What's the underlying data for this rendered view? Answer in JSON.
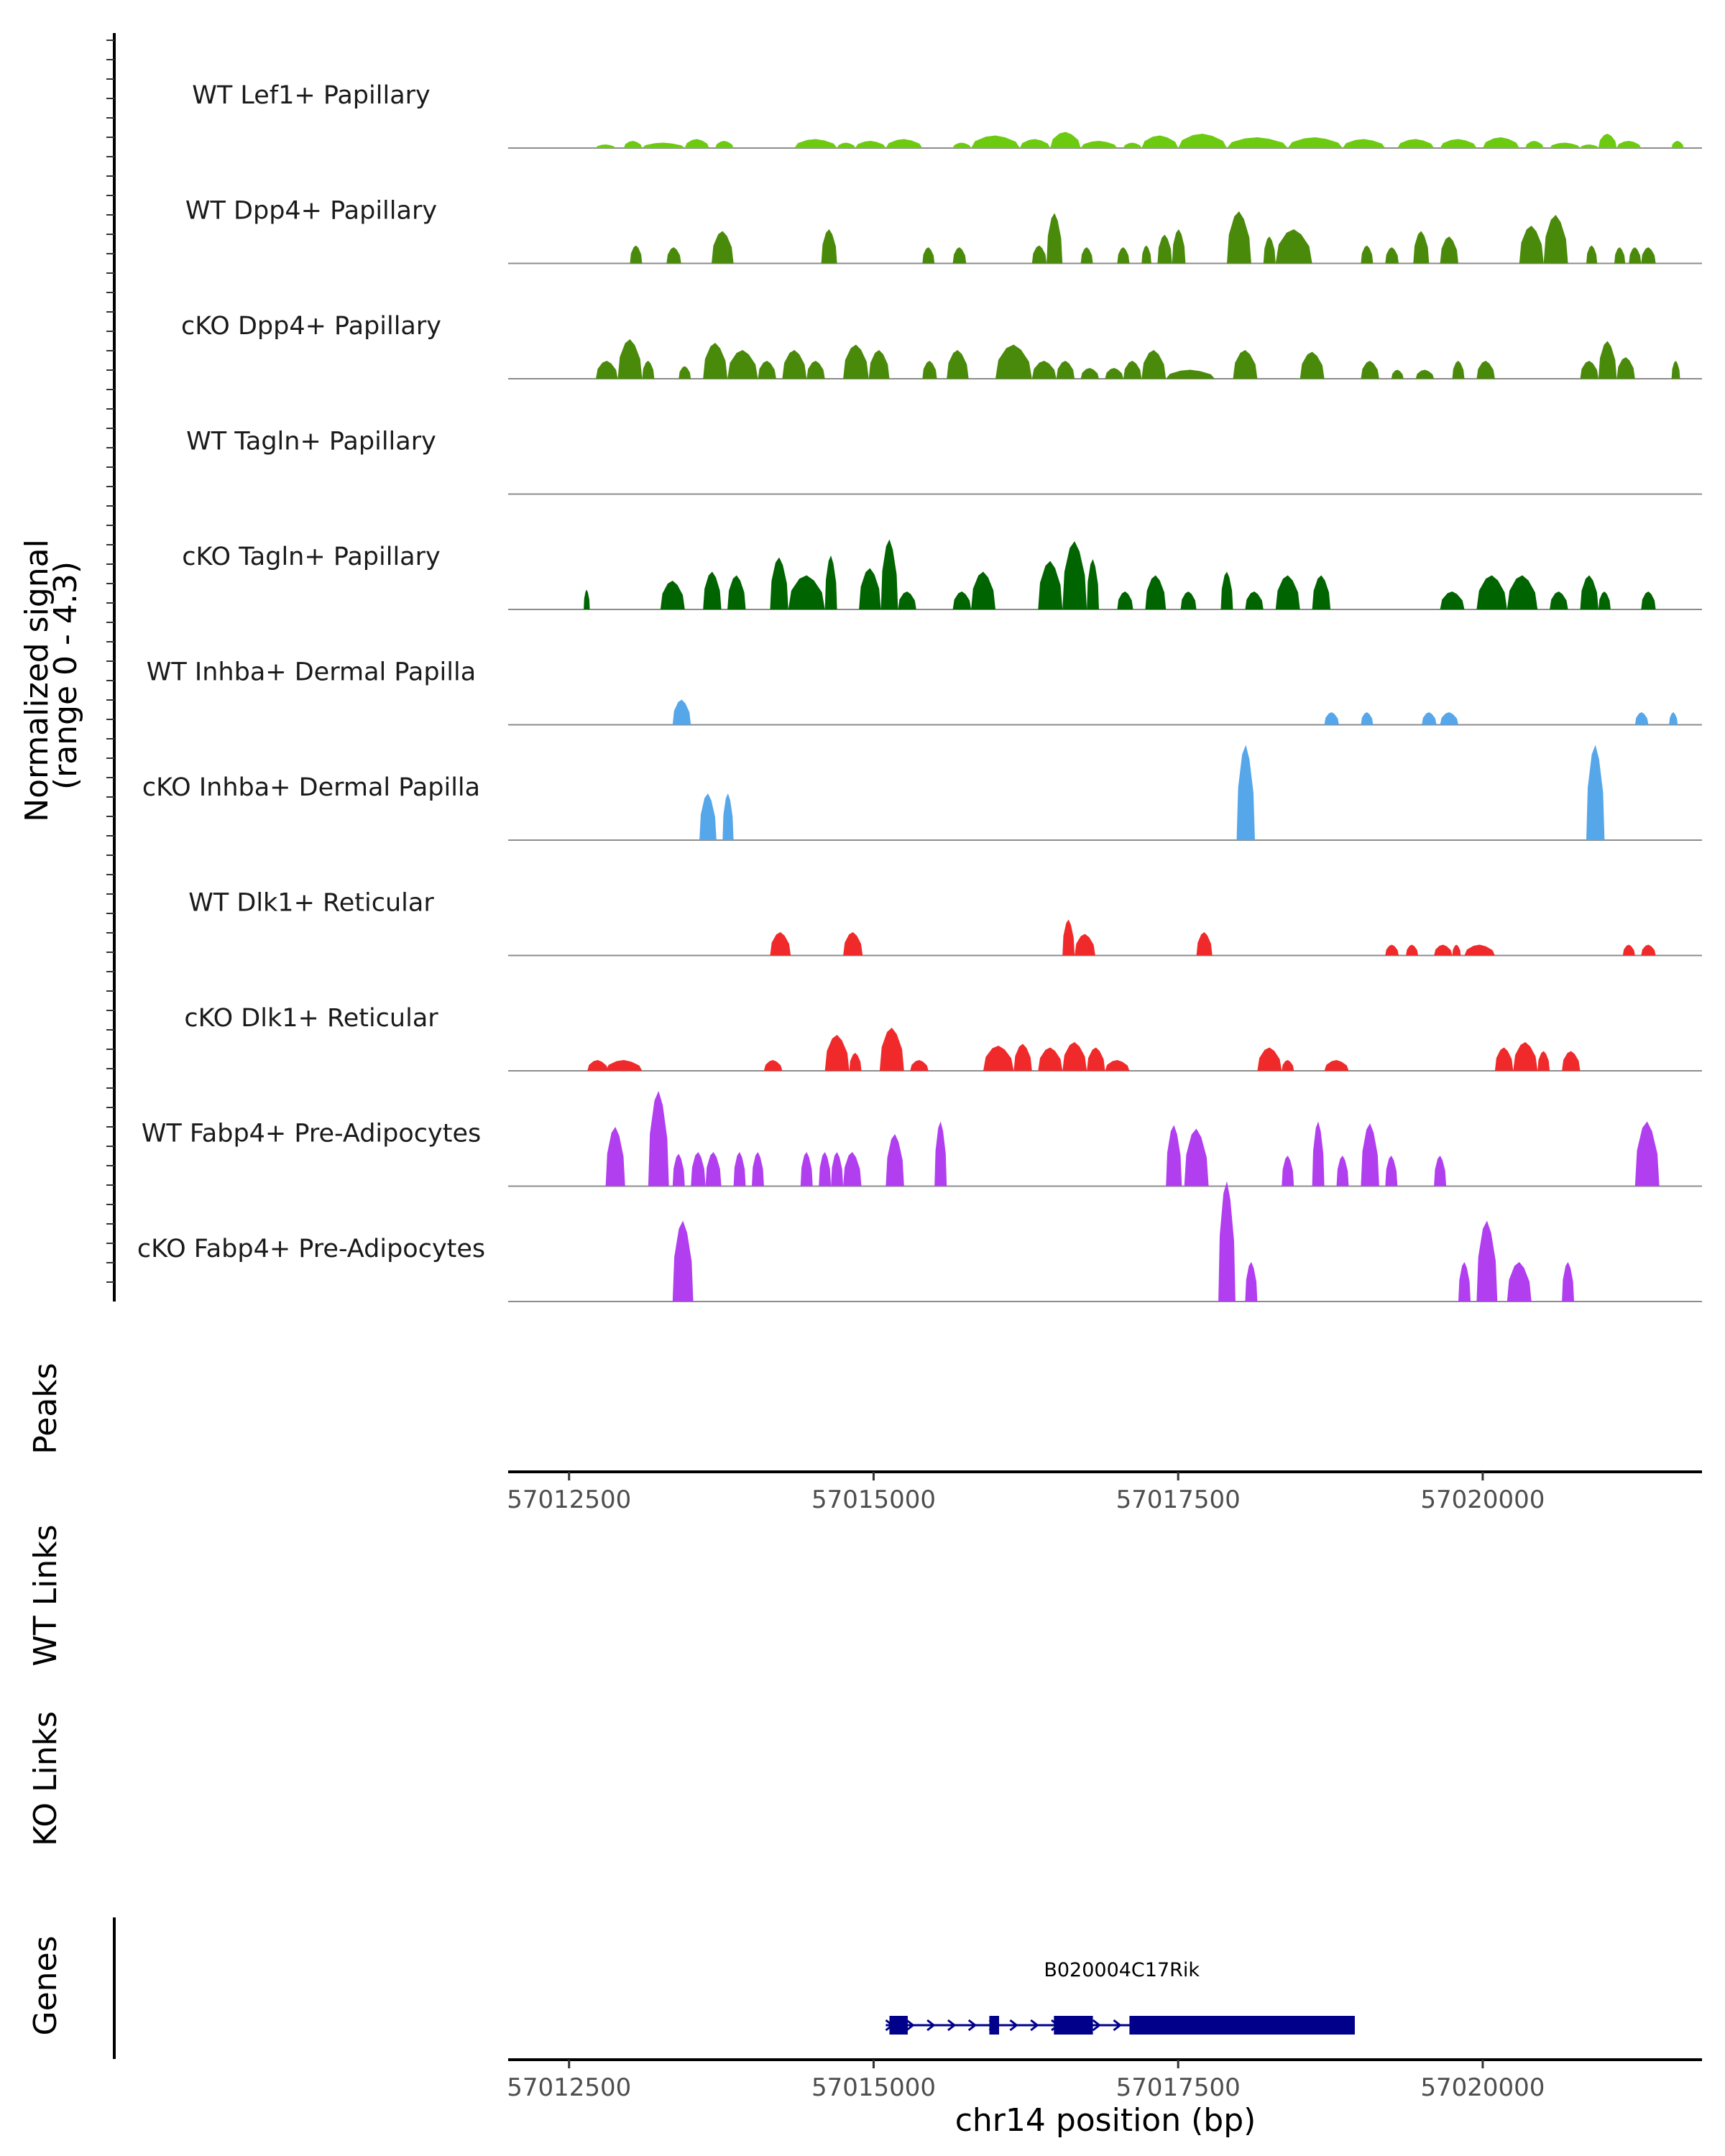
{
  "chart_data": {
    "type": "area",
    "title": "",
    "region": {
      "chrom": "chr14",
      "start": 57012000,
      "end": 57021800
    },
    "coverage_ylabel": "Normalized signal\n(range 0 - 4.3)",
    "ylim": [
      0,
      4.3
    ],
    "tracks": [
      {
        "name": "WT Lef1+ Papillary",
        "color": "#6ccb10",
        "peaks": [
          [
            57012720,
            57012880,
            0.2
          ],
          [
            57012950,
            57013100,
            0.4
          ],
          [
            57013100,
            57013450,
            0.3
          ],
          [
            57013450,
            57013650,
            0.5
          ],
          [
            57013700,
            57013850,
            0.4
          ],
          [
            57014350,
            57014700,
            0.5
          ],
          [
            57014700,
            57014850,
            0.3
          ],
          [
            57014850,
            57015100,
            0.4
          ],
          [
            57015100,
            57015400,
            0.5
          ],
          [
            57015650,
            57015800,
            0.3
          ],
          [
            57015800,
            57016200,
            0.7
          ],
          [
            57016200,
            57016450,
            0.5
          ],
          [
            57016450,
            57016700,
            0.9
          ],
          [
            57016700,
            57017000,
            0.4
          ],
          [
            57017050,
            57017200,
            0.3
          ],
          [
            57017200,
            57017500,
            0.7
          ],
          [
            57017500,
            57017900,
            0.8
          ],
          [
            57017900,
            57018400,
            0.6
          ],
          [
            57018400,
            57018850,
            0.6
          ],
          [
            57018850,
            57019200,
            0.5
          ],
          [
            57019300,
            57019600,
            0.5
          ],
          [
            57019650,
            57019950,
            0.5
          ],
          [
            57020000,
            57020300,
            0.6
          ],
          [
            57020350,
            57020500,
            0.4
          ],
          [
            57020550,
            57020800,
            0.3
          ],
          [
            57020800,
            57020950,
            0.2
          ],
          [
            57020950,
            57021100,
            0.8
          ],
          [
            57021100,
            57021300,
            0.4
          ],
          [
            57021550,
            57021650,
            0.4
          ]
        ]
      },
      {
        "name": "WT Dpp4+ Papillary",
        "color": "#4a8a0b",
        "peaks": [
          [
            57013000,
            57013100,
            1.0
          ],
          [
            57013300,
            57013420,
            0.9
          ],
          [
            57013670,
            57013850,
            1.8
          ],
          [
            57014570,
            57014700,
            1.9
          ],
          [
            57015400,
            57015500,
            0.9
          ],
          [
            57015650,
            57015760,
            0.9
          ],
          [
            57016300,
            57016420,
            1.0
          ],
          [
            57016420,
            57016550,
            2.8
          ],
          [
            57016700,
            57016800,
            0.9
          ],
          [
            57017000,
            57017100,
            0.9
          ],
          [
            57017200,
            57017280,
            1.0
          ],
          [
            57017330,
            57017450,
            1.6
          ],
          [
            57017450,
            57017560,
            1.9
          ],
          [
            57017900,
            57018100,
            2.9
          ],
          [
            57018200,
            57018300,
            1.5
          ],
          [
            57018300,
            57018600,
            1.9
          ],
          [
            57019000,
            57019100,
            1.0
          ],
          [
            57019200,
            57019310,
            0.9
          ],
          [
            57019430,
            57019560,
            1.8
          ],
          [
            57019650,
            57019800,
            1.5
          ],
          [
            57020300,
            57020500,
            2.1
          ],
          [
            57020500,
            57020700,
            2.7
          ],
          [
            57020850,
            57020940,
            1.0
          ],
          [
            57021080,
            57021170,
            0.9
          ],
          [
            57021200,
            57021300,
            0.9
          ],
          [
            57021300,
            57021420,
            0.9
          ]
        ]
      },
      {
        "name": "cKO Dpp4+ Papillary",
        "color": "#4a8a0b",
        "peaks": [
          [
            57012720,
            57012900,
            1.0
          ],
          [
            57012900,
            57013100,
            2.2
          ],
          [
            57013100,
            57013200,
            1.0
          ],
          [
            57013400,
            57013500,
            0.7
          ],
          [
            57013600,
            57013800,
            2.0
          ],
          [
            57013800,
            57014050,
            1.6
          ],
          [
            57014050,
            57014200,
            1.0
          ],
          [
            57014250,
            57014450,
            1.6
          ],
          [
            57014450,
            57014600,
            1.0
          ],
          [
            57014750,
            57014960,
            1.9
          ],
          [
            57014960,
            57015130,
            1.6
          ],
          [
            57015400,
            57015520,
            1.0
          ],
          [
            57015600,
            57015780,
            1.6
          ],
          [
            57016000,
            57016300,
            1.9
          ],
          [
            57016300,
            57016500,
            1.0
          ],
          [
            57016500,
            57016650,
            1.0
          ],
          [
            57016700,
            57016850,
            0.6
          ],
          [
            57016900,
            57017050,
            0.6
          ],
          [
            57017050,
            57017200,
            1.0
          ],
          [
            57017200,
            57017400,
            1.6
          ],
          [
            57017400,
            57017800,
            0.5
          ],
          [
            57017950,
            57018150,
            1.6
          ],
          [
            57018500,
            57018700,
            1.5
          ],
          [
            57019000,
            57019150,
            1.0
          ],
          [
            57019250,
            57019350,
            0.5
          ],
          [
            57019450,
            57019600,
            0.5
          ],
          [
            57019750,
            57019850,
            1.0
          ],
          [
            57019950,
            57020100,
            1.0
          ],
          [
            57020800,
            57020950,
            1.0
          ],
          [
            57020950,
            57021100,
            2.1
          ],
          [
            57021100,
            57021250,
            1.2
          ],
          [
            57021550,
            57021620,
            1.0
          ]
        ]
      },
      {
        "name": "WT Tagln+ Papillary",
        "color": "#4a8a0b",
        "peaks": []
      },
      {
        "name": "cKO Tagln+ Papillary",
        "color": "#006400",
        "peaks": [
          [
            57012620,
            57012670,
            1.1
          ],
          [
            57013250,
            57013450,
            1.6
          ],
          [
            57013600,
            57013750,
            2.1
          ],
          [
            57013800,
            57013950,
            1.9
          ],
          [
            57014150,
            57014300,
            2.9
          ],
          [
            57014300,
            57014600,
            1.9
          ],
          [
            57014600,
            57014700,
            3.0
          ],
          [
            57014880,
            57015060,
            2.3
          ],
          [
            57015060,
            57015200,
            3.9
          ],
          [
            57015200,
            57015350,
            1.0
          ],
          [
            57015650,
            57015800,
            1.0
          ],
          [
            57015800,
            57016000,
            2.1
          ],
          [
            57016350,
            57016550,
            2.7
          ],
          [
            57016550,
            57016750,
            3.8
          ],
          [
            57016750,
            57016850,
            2.8
          ],
          [
            57017000,
            57017130,
            1.0
          ],
          [
            57017230,
            57017400,
            1.9
          ],
          [
            57017520,
            57017650,
            1.0
          ],
          [
            57017850,
            57017950,
            2.1
          ],
          [
            57018050,
            57018200,
            1.0
          ],
          [
            57018300,
            57018500,
            1.9
          ],
          [
            57018600,
            57018750,
            1.9
          ],
          [
            57019650,
            57019850,
            1.0
          ],
          [
            57019950,
            57020200,
            1.9
          ],
          [
            57020200,
            57020450,
            1.9
          ],
          [
            57020550,
            57020700,
            1.0
          ],
          [
            57020800,
            57020950,
            1.9
          ],
          [
            57020950,
            57021050,
            1.0
          ],
          [
            57021300,
            57021420,
            1.0
          ]
        ]
      },
      {
        "name": "WT Inhba+ Dermal Papilla",
        "color": "#56a6ea",
        "peaks": [
          [
            57013350,
            57013500,
            1.4
          ],
          [
            57018700,
            57018820,
            0.7
          ],
          [
            57019000,
            57019100,
            0.7
          ],
          [
            57019500,
            57019620,
            0.7
          ],
          [
            57019650,
            57019800,
            0.7
          ],
          [
            57021250,
            57021360,
            0.7
          ],
          [
            57021530,
            57021600,
            0.7
          ]
        ]
      },
      {
        "name": "cKO Inhba+ Dermal Papilla",
        "color": "#56a6ea",
        "peaks": [
          [
            57013570,
            57013710,
            2.6
          ],
          [
            57013760,
            57013850,
            2.6
          ],
          [
            57017980,
            57018130,
            5.3
          ],
          [
            57020850,
            57021000,
            5.3
          ]
        ]
      },
      {
        "name": "WT Dlk1+ Reticular",
        "color": "#f02a2a",
        "peaks": [
          [
            57014150,
            57014320,
            1.3
          ],
          [
            57014750,
            57014910,
            1.3
          ],
          [
            57016550,
            57016650,
            2.0
          ],
          [
            57016650,
            57016820,
            1.2
          ],
          [
            57017650,
            57017780,
            1.3
          ],
          [
            57019200,
            57019310,
            0.6
          ],
          [
            57019370,
            57019470,
            0.6
          ],
          [
            57019600,
            57019750,
            0.6
          ],
          [
            57019750,
            57019820,
            0.6
          ],
          [
            57019850,
            57020100,
            0.6
          ],
          [
            57021150,
            57021250,
            0.6
          ],
          [
            57021300,
            57021420,
            0.6
          ]
        ]
      },
      {
        "name": "cKO Dlk1+ Reticular",
        "color": "#f02a2a",
        "peaks": [
          [
            57012650,
            57012820,
            0.6
          ],
          [
            57012800,
            57013100,
            0.6
          ],
          [
            57014100,
            57014250,
            0.6
          ],
          [
            57014600,
            57014800,
            2.0
          ],
          [
            57014800,
            57014900,
            1.0
          ],
          [
            57015050,
            57015250,
            2.4
          ],
          [
            57015300,
            57015450,
            0.6
          ],
          [
            57015900,
            57016150,
            1.4
          ],
          [
            57016150,
            57016300,
            1.5
          ],
          [
            57016350,
            57016550,
            1.3
          ],
          [
            57016550,
            57016750,
            1.6
          ],
          [
            57016750,
            57016900,
            1.3
          ],
          [
            57016900,
            57017100,
            0.6
          ],
          [
            57018150,
            57018350,
            1.3
          ],
          [
            57018350,
            57018450,
            0.6
          ],
          [
            57018700,
            57018900,
            0.6
          ],
          [
            57020100,
            57020250,
            1.3
          ],
          [
            57020250,
            57020450,
            1.6
          ],
          [
            57020450,
            57020550,
            1.1
          ],
          [
            57020650,
            57020800,
            1.1
          ]
        ]
      },
      {
        "name": "WT Fabp4+ Pre-Adipocytes",
        "color": "#b13ff0",
        "peaks": [
          [
            57012800,
            57012960,
            3.3
          ],
          [
            57013150,
            57013320,
            5.3
          ],
          [
            57013350,
            57013450,
            1.8
          ],
          [
            57013500,
            57013620,
            1.9
          ],
          [
            57013620,
            57013750,
            1.9
          ],
          [
            57013850,
            57013950,
            1.9
          ],
          [
            57014000,
            57014100,
            1.9
          ],
          [
            57014400,
            57014500,
            1.9
          ],
          [
            57014550,
            57014650,
            1.9
          ],
          [
            57014650,
            57014750,
            1.9
          ],
          [
            57014750,
            57014900,
            1.9
          ],
          [
            57015100,
            57015250,
            2.9
          ],
          [
            57015500,
            57015600,
            3.6
          ],
          [
            57017400,
            57017530,
            3.4
          ],
          [
            57017550,
            57017750,
            3.2
          ],
          [
            57018350,
            57018450,
            1.7
          ],
          [
            57018600,
            57018700,
            3.6
          ],
          [
            57018800,
            57018900,
            1.7
          ],
          [
            57019000,
            57019150,
            3.5
          ],
          [
            57019200,
            57019300,
            1.7
          ],
          [
            57019600,
            57019700,
            1.7
          ],
          [
            57021250,
            57021450,
            3.6
          ]
        ]
      },
      {
        "name": "cKO Fabp4+ Pre-Adipocytes",
        "color": "#b13ff0",
        "peaks": [
          [
            57013350,
            57013520,
            4.5
          ],
          [
            57017830,
            57017970,
            6.7
          ],
          [
            57018050,
            57018150,
            2.2
          ],
          [
            57019800,
            57019900,
            2.2
          ],
          [
            57019950,
            57020120,
            4.5
          ],
          [
            57020200,
            57020400,
            2.2
          ],
          [
            57020650,
            57020750,
            2.2
          ]
        ]
      }
    ],
    "peaks_label": "Peaks",
    "coverage_axis_ticks": [
      "57012500",
      "57015000",
      "57017500",
      "57020000"
    ],
    "coverage_axis_values": [
      57012500,
      57015000,
      57017500,
      57020000
    ],
    "links_labels": [
      "WT Links",
      "KO Links"
    ],
    "genes_label": "Genes",
    "gene": {
      "name": "B020004C17Rik",
      "strand": "+",
      "start": 57015100,
      "end": 57018950,
      "exons": [
        [
          57015130,
          57015280
        ],
        [
          57015950,
          57016030
        ],
        [
          57016480,
          57016800
        ],
        [
          57017100,
          57018950
        ]
      ]
    },
    "xlabel": "chr14 position (bp)",
    "gene_axis_ticks": [
      "57012500",
      "57015000",
      "57017500",
      "57020000"
    ],
    "gene_axis_values": [
      57012500,
      57015000,
      57017500,
      57020000
    ]
  }
}
